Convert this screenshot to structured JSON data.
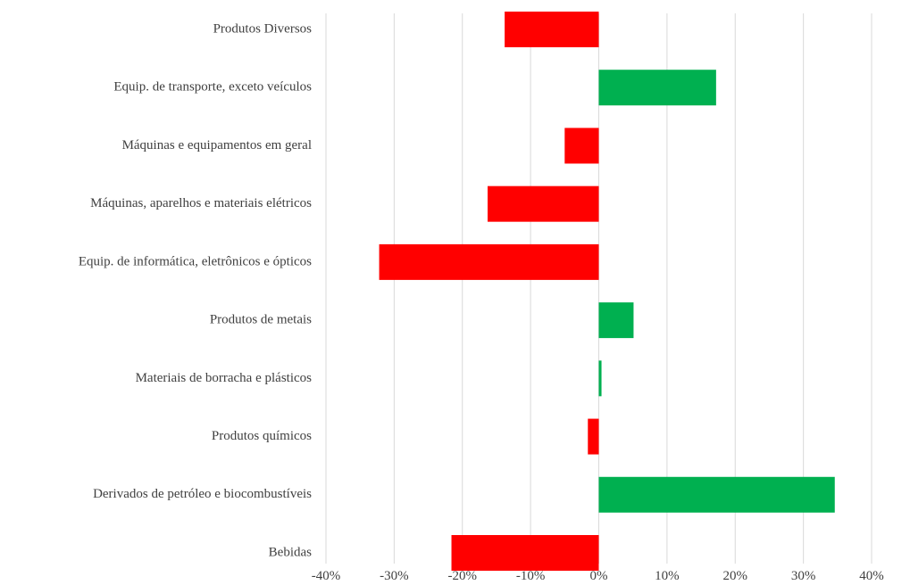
{
  "chart_data": {
    "type": "bar",
    "orientation": "horizontal",
    "categories": [
      "Produtos Diversos",
      "Equip. de transporte, exceto veículos",
      "Máquinas e equipamentos em geral",
      "Máquinas, aparelhos e materiais elétricos",
      "Equip. de informática, eletrônicos e ópticos",
      "Produtos de metais",
      "Materiais de borracha e plásticos",
      "Produtos químicos",
      "Derivados de petróleo e biocombustíveis",
      "Bebidas"
    ],
    "values": [
      -0.138,
      0.172,
      -0.05,
      -0.163,
      -0.322,
      0.051,
      0.004,
      -0.016,
      0.346,
      -0.216
    ],
    "xlim": [
      -0.4,
      0.4
    ],
    "xticks": [
      -0.4,
      -0.3,
      -0.2,
      -0.1,
      0,
      0.1,
      0.2,
      0.3,
      0.4
    ],
    "xtick_labels": [
      "-40%",
      "-30%",
      "-20%",
      "-10%",
      "0%",
      "10%",
      "20%",
      "30%",
      "40%"
    ],
    "grid": "vertical",
    "legend": "none",
    "colors": {
      "positive": "#00b050",
      "negative": "#ff0000",
      "grid": "#d9d9d9",
      "text": "#404040"
    }
  }
}
